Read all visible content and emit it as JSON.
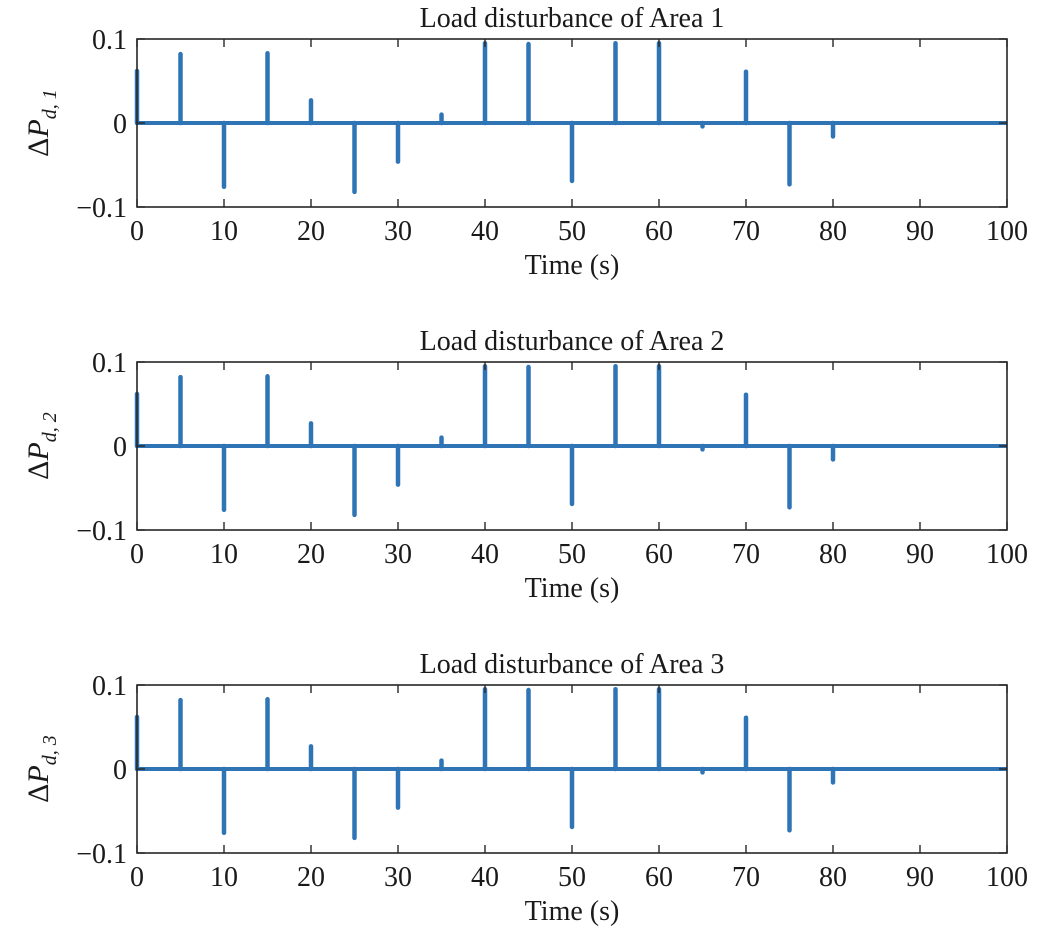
{
  "chart_data": [
    {
      "type": "line",
      "title": "Load disturbance of Area 1",
      "xlabel": "Time (s)",
      "ylabel": {
        "symbol": "ΔP",
        "subscript": "d, 1"
      },
      "xlim": [
        0,
        100
      ],
      "ylim": [
        -0.1,
        0.1
      ],
      "xticks": [
        "0",
        "10",
        "20",
        "30",
        "40",
        "50",
        "60",
        "70",
        "80",
        "90",
        "100"
      ],
      "yticks": [
        "0.1",
        "0",
        "−0.1"
      ],
      "grid": false,
      "series": [
        {
          "color": "#2f75b5",
          "baseline": 0,
          "x": [
            0,
            5,
            10,
            15,
            20,
            25,
            30,
            35,
            40,
            45,
            50,
            55,
            60,
            65,
            70,
            75,
            80
          ],
          "y": [
            0.062,
            0.082,
            -0.076,
            0.083,
            0.027,
            -0.082,
            -0.046,
            0.01,
            0.095,
            0.094,
            -0.069,
            0.095,
            0.095,
            -0.004,
            0.061,
            -0.073,
            -0.016
          ]
        }
      ]
    },
    {
      "type": "line",
      "title": "Load disturbance of Area 2",
      "xlabel": "Time (s)",
      "ylabel": {
        "symbol": "ΔP",
        "subscript": "d, 2"
      },
      "xlim": [
        0,
        100
      ],
      "ylim": [
        -0.1,
        0.1
      ],
      "xticks": [
        "0",
        "10",
        "20",
        "30",
        "40",
        "50",
        "60",
        "70",
        "80",
        "90",
        "100"
      ],
      "yticks": [
        "0.1",
        "0",
        "−0.1"
      ],
      "grid": false,
      "series": [
        {
          "color": "#2f75b5",
          "baseline": 0,
          "x": [
            0,
            5,
            10,
            15,
            20,
            25,
            30,
            35,
            40,
            45,
            50,
            55,
            60,
            65,
            70,
            75,
            80
          ],
          "y": [
            0.062,
            0.082,
            -0.076,
            0.083,
            0.027,
            -0.082,
            -0.046,
            0.01,
            0.095,
            0.094,
            -0.069,
            0.095,
            0.095,
            -0.004,
            0.061,
            -0.073,
            -0.016
          ]
        }
      ]
    },
    {
      "type": "line",
      "title": "Load disturbance of Area 3",
      "xlabel": "Time (s)",
      "ylabel": {
        "symbol": "ΔP",
        "subscript": "d, 3"
      },
      "xlim": [
        0,
        100
      ],
      "ylim": [
        -0.1,
        0.1
      ],
      "xticks": [
        "0",
        "10",
        "20",
        "30",
        "40",
        "50",
        "60",
        "70",
        "80",
        "90",
        "100"
      ],
      "yticks": [
        "0.1",
        "0",
        "−0.1"
      ],
      "grid": false,
      "series": [
        {
          "color": "#2f75b5",
          "baseline": 0,
          "x": [
            0,
            5,
            10,
            15,
            20,
            25,
            30,
            35,
            40,
            45,
            50,
            55,
            60,
            65,
            70,
            75,
            80
          ],
          "y": [
            0.062,
            0.082,
            -0.076,
            0.083,
            0.027,
            -0.082,
            -0.046,
            0.01,
            0.095,
            0.094,
            -0.069,
            0.095,
            0.095,
            -0.004,
            0.061,
            -0.073,
            -0.016
          ]
        }
      ]
    }
  ]
}
